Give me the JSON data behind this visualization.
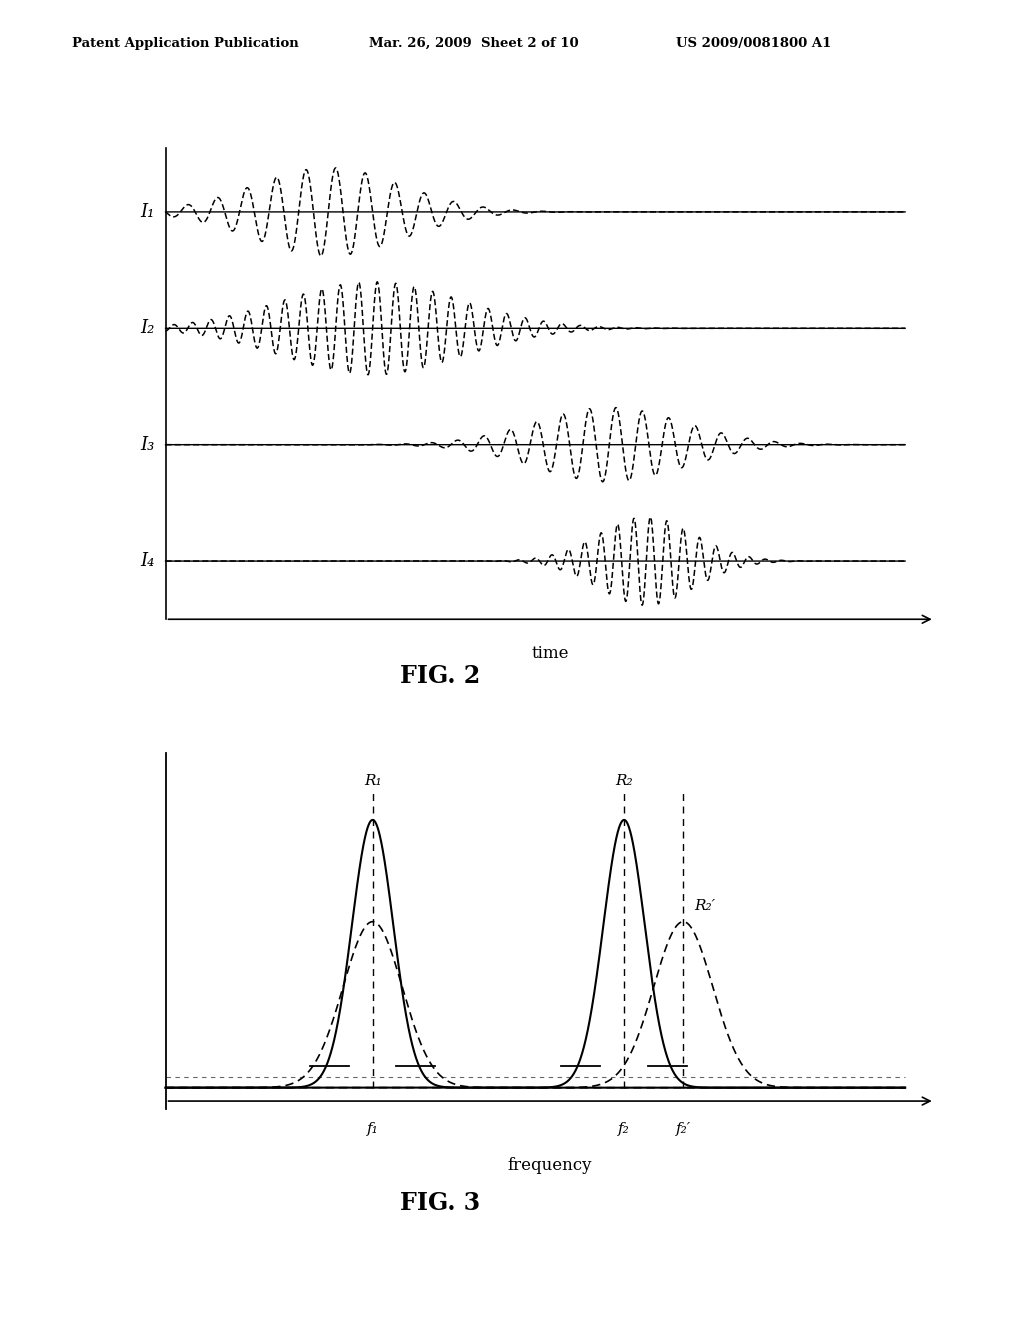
{
  "header_left": "Patent Application Publication",
  "header_mid": "Mar. 26, 2009  Sheet 2 of 10",
  "header_right": "US 2009/0081800 A1",
  "fig2_title": "FIG. 2",
  "fig3_title": "FIG. 3",
  "fig2_xlabel": "time",
  "fig3_xlabel": "frequency",
  "fig2_labels": [
    "I₁",
    "I₂",
    "I₃",
    "I₄"
  ],
  "fig3_r_labels": [
    "R₁",
    "R₂",
    "R₂′"
  ],
  "fig3_freq_labels": [
    "f₁",
    "f₂",
    "f₂′"
  ],
  "bg_color": "#ffffff",
  "line_color": "#000000"
}
